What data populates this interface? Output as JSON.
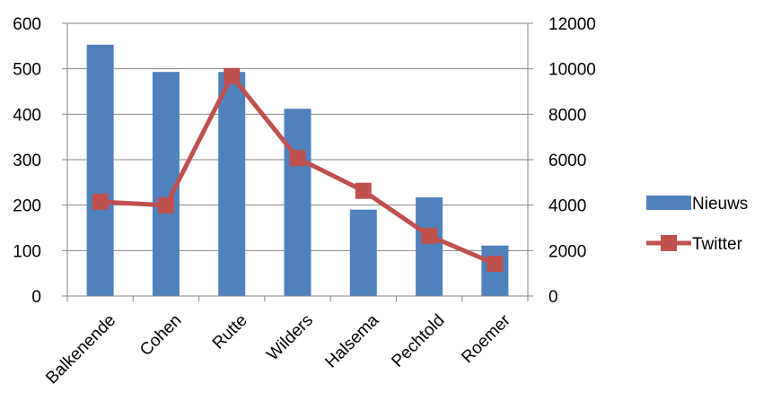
{
  "chart_data": {
    "type": "bar",
    "categories": [
      "Balkenende",
      "Cohen",
      "Rutte",
      "Wilders",
      "Halsema",
      "Pechtold",
      "Roemer"
    ],
    "series": [
      {
        "name": "Nieuws",
        "type": "bar",
        "axis": "left",
        "color": "#4F81BD",
        "values": [
          553,
          493,
          493,
          412,
          190,
          217,
          111
        ]
      },
      {
        "name": "Twitter",
        "type": "line",
        "marker": "square",
        "axis": "right",
        "color": "#C0504D",
        "values": [
          4150,
          3990,
          9680,
          6070,
          4630,
          2650,
          1420
        ]
      }
    ],
    "y_left": {
      "ylim": [
        0,
        600
      ],
      "ticks": [
        0,
        100,
        200,
        300,
        400,
        500,
        600
      ]
    },
    "y_right": {
      "ylim": [
        0,
        12000
      ],
      "ticks": [
        0,
        2000,
        4000,
        6000,
        8000,
        10000,
        12000
      ]
    },
    "grid": true,
    "legend_position": "right"
  }
}
